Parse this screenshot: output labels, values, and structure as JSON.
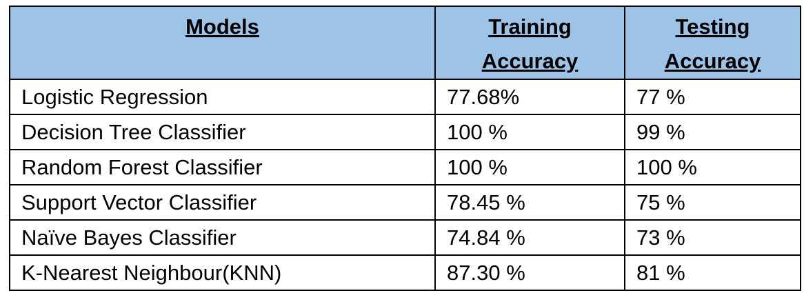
{
  "table": {
    "header": [
      "Models",
      "Training Accuracy",
      "Testing Accuracy"
    ],
    "rows": [
      [
        "Logistic Regression",
        "77.68%",
        "77 %"
      ],
      [
        "Decision Tree Classifier",
        "100 %",
        "99 %"
      ],
      [
        "Random Forest Classifier",
        "100 %",
        "100 %"
      ],
      [
        "Support Vector Classifier",
        "78.45 %",
        "75 %"
      ],
      [
        "Naïve Bayes Classifier",
        "74.84 %",
        "73 %"
      ],
      [
        "K-Nearest Neighbour(KNN)",
        "87.30 %",
        "81 %"
      ]
    ]
  }
}
